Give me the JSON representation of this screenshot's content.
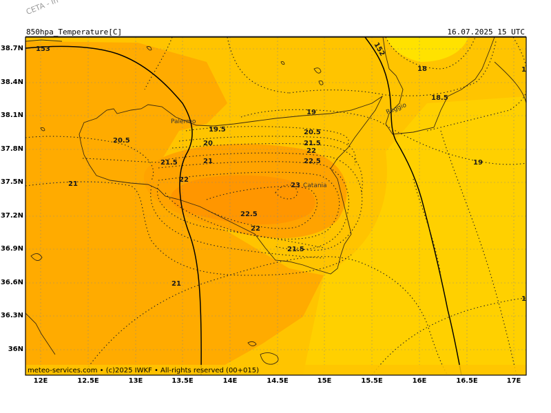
{
  "watermark": "CETA - In",
  "header": {
    "title": "850hpa_Temperature[C]",
    "timestamp": "16.07.2025  15 UTC"
  },
  "footer": "meteo-services.com • (c)2025 IWKF • All-rights reserved (00+015)",
  "y_ticks": [
    "38.7N",
    "38.4N",
    "38.1N",
    "37.8N",
    "37.5N",
    "37.2N",
    "36.9N",
    "36.6N",
    "36.3N",
    "36N"
  ],
  "x_ticks": [
    "12E",
    "12.5E",
    "13E",
    "13.5E",
    "14E",
    "14.5E",
    "15E",
    "15.5E",
    "16E",
    "16.5E",
    "17E"
  ],
  "cities": [
    "Palermo",
    "Catania",
    "Reggio"
  ],
  "contour_labels": [
    "153",
    "152",
    "18",
    "18.5",
    "19",
    "19.5",
    "20",
    "20.5",
    "21",
    "21.5",
    "22",
    "22.5",
    "23",
    "22.5",
    "22",
    "21.5",
    "21",
    "21",
    "20.5",
    "21.5",
    "19",
    "1",
    "1"
  ],
  "colors": {
    "background": "#ffc400",
    "warm": "#ffa300",
    "hottest": "#ff9600",
    "cool": "#ffd000",
    "coolest": "#ffe200"
  }
}
